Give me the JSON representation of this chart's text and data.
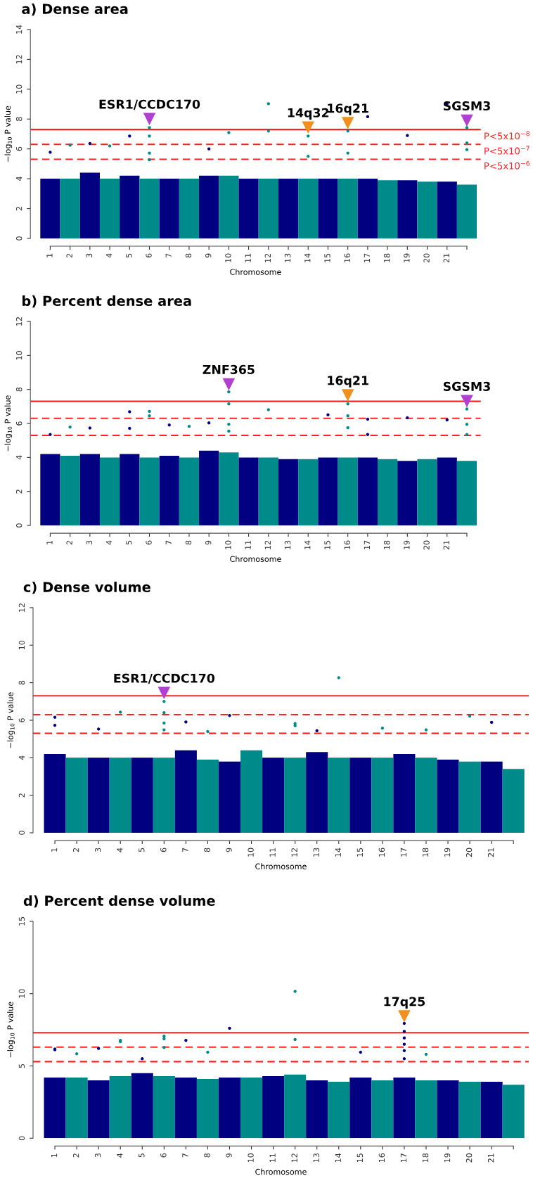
{
  "chart_data": [
    {
      "type": "bar",
      "title": "a) Dense area",
      "xlabel": "Chromosome",
      "ylabel": "−log$_{10}$ P value",
      "categories": [
        "1",
        "2",
        "3",
        "4",
        "5",
        "6",
        "7",
        "8",
        "9",
        "10",
        "11",
        "12",
        "13",
        "14",
        "15",
        "16",
        "17",
        "18",
        "19",
        "20",
        "21",
        null
      ],
      "ylim": [
        0,
        14
      ],
      "yticks": [
        0,
        2,
        4,
        6,
        8,
        10,
        12,
        14
      ],
      "series": [
        {
          "values": [
            4.0,
            4.0,
            4.4,
            4.0,
            4.2,
            4.0,
            4.0,
            4.0,
            4.2,
            4.2,
            4.0,
            4.0,
            4.0,
            4.0,
            4.0,
            4.0,
            4.0,
            3.9,
            3.9,
            3.8,
            3.8,
            3.6
          ],
          "colors": [
            "#000080",
            "#008b8b",
            "#000080",
            "#008b8b",
            "#000080",
            "#008b8b",
            "#000080",
            "#008b8b",
            "#000080",
            "#008b8b",
            "#000080",
            "#008b8b",
            "#000080",
            "#008b8b",
            "#000080",
            "#008b8b",
            "#000080",
            "#008b8b",
            "#000080",
            "#008b8b",
            "#000080",
            "#008b8b"
          ]
        },
        {
          "type": "scatter",
          "values": [
            5.77,
            6.25,
            6.36,
            6.2,
            6.86,
            7.43,
            null,
            null,
            6.0,
            7.09,
            null,
            9.03,
            null,
            6.86,
            null,
            7.2,
            8.16,
            null,
            6.9,
            null,
            9.03,
            7.43
          ],
          "colors": [
            "#000080",
            "#008b8b",
            "#000080",
            "#008b8b",
            "#000080",
            "#008b8b",
            "#000080",
            "#008b8b",
            "#000080",
            "#008b8b",
            "#000080",
            "#008b8b",
            "#000080",
            "#008b8b",
            "#000080",
            "#008b8b",
            "#000080",
            "#008b8b",
            "#000080",
            "#008b8b",
            "#000080",
            "#008b8b"
          ]
        },
        {
          "type": "scatter",
          "values": [
            null,
            null,
            null,
            null,
            null,
            6.86,
            null,
            null,
            null,
            null,
            null,
            7.2,
            null,
            5.5,
            null,
            5.72,
            null,
            null,
            null,
            null,
            null,
            6.4
          ],
          "colors": [
            "#000080",
            "#008b8b",
            "#000080",
            "#008b8b",
            "#000080",
            "#008b8b",
            "#000080",
            "#008b8b",
            "#000080",
            "#008b8b",
            "#000080",
            "#008b8b",
            "#000080",
            "#008b8b",
            "#000080",
            "#008b8b",
            "#000080",
            "#008b8b",
            "#000080",
            "#008b8b",
            "#000080",
            "#008b8b"
          ]
        },
        {
          "type": "scatter",
          "values": [
            null,
            null,
            null,
            null,
            null,
            5.72,
            null,
            null,
            null,
            null,
            null,
            null,
            null,
            null,
            null,
            null,
            null,
            null,
            null,
            null,
            null,
            5.95
          ],
          "colors": [
            "#000080",
            "#008b8b",
            "#000080",
            "#008b8b",
            "#000080",
            "#008b8b",
            "#000080",
            "#008b8b",
            "#000080",
            "#008b8b",
            "#000080",
            "#008b8b",
            "#000080",
            "#008b8b",
            "#000080",
            "#008b8b",
            "#000080",
            "#008b8b",
            "#000080",
            "#008b8b",
            "#000080",
            "#008b8b"
          ]
        },
        {
          "type": "scatter",
          "values": [
            null,
            null,
            null,
            null,
            null,
            5.27,
            null,
            null,
            null,
            null,
            null,
            null,
            null,
            null,
            null,
            null,
            null,
            null,
            null,
            null,
            null,
            null
          ],
          "color": "#008b8b"
        },
        {
          "type": "scatter",
          "marker": "triangle",
          "values": [
            null,
            null,
            null,
            null,
            null,
            8.0,
            null,
            null,
            null,
            null,
            null,
            null,
            null,
            7.43,
            null,
            7.73,
            null,
            null,
            null,
            null,
            null,
            7.89
          ],
          "colors": [
            "#b040d0",
            "#b040d0",
            "#b040d0",
            "#b040d0",
            "#b040d0",
            "#b040d0",
            "#b040d0",
            "#b040d0",
            "#b040d0",
            "#b040d0",
            "#b040d0",
            "#b040d0",
            "#b040d0",
            "#f0901e",
            "#f0901e",
            "#f0901e",
            "#b040d0",
            "#b040d0",
            "#b040d0",
            "#b040d0",
            "#b040d0",
            "#b040d0"
          ]
        }
      ],
      "ref_lines": [
        {
          "axis": "y",
          "value": 7.3,
          "color": "#ff2020",
          "line_style": "solid",
          "label": "P<5x10$^{−8}$"
        },
        {
          "axis": "y",
          "value": 6.3,
          "color": "#ff2020",
          "line_style": "dashed",
          "label": "P<5x10$^{−7}$"
        },
        {
          "axis": "y",
          "value": 5.3,
          "color": "#ff2020",
          "line_style": "dashed",
          "label": "P<5x10$^{−6}$"
        }
      ],
      "annotations": [
        {
          "text": "ESR1/CCDC170",
          "x": "6",
          "y": 8.0
        },
        {
          "text": "14q32",
          "x": "14",
          "y": 7.43
        },
        {
          "text": "16q21",
          "x": "16",
          "y": 7.73
        },
        {
          "text": "SGSM3",
          "y": 7.89
        }
      ]
    },
    {
      "type": "bar",
      "title": "b) Percent dense area",
      "xlabel": "Chromosome",
      "ylabel": "−log$_{10}$ P value",
      "categories": [
        "1",
        "2",
        "3",
        "4",
        "5",
        "6",
        "7",
        "8",
        "9",
        "10",
        "11",
        "12",
        "13",
        "14",
        "15",
        "16",
        "17",
        "18",
        "19",
        "20",
        "21",
        null
      ],
      "ylim": [
        0,
        12
      ],
      "yticks": [
        0,
        2,
        4,
        6,
        8,
        10,
        12
      ],
      "series": [
        {
          "values": [
            4.2,
            4.1,
            4.2,
            4.0,
            4.2,
            4.0,
            4.1,
            4.0,
            4.4,
            4.3,
            4.0,
            4.0,
            3.9,
            3.9,
            4.0,
            4.0,
            4.0,
            3.9,
            3.8,
            3.9,
            4.0,
            3.8
          ],
          "colors": [
            "#000080",
            "#008b8b",
            "#000080",
            "#008b8b",
            "#000080",
            "#008b8b",
            "#000080",
            "#008b8b",
            "#000080",
            "#008b8b",
            "#000080",
            "#008b8b",
            "#000080",
            "#008b8b",
            "#000080",
            "#008b8b",
            "#000080",
            "#008b8b",
            "#000080",
            "#008b8b",
            "#000080",
            "#008b8b"
          ]
        },
        {
          "type": "scatter",
          "values": [
            5.35,
            5.79,
            5.73,
            null,
            6.69,
            6.71,
            5.91,
            5.83,
            6.03,
            7.86,
            null,
            6.81,
            null,
            null,
            6.51,
            7.15,
            6.25,
            null,
            6.33,
            null,
            6.21,
            6.85
          ],
          "colors": [
            "#000080",
            "#008b8b",
            "#000080",
            "#008b8b",
            "#000080",
            "#008b8b",
            "#000080",
            "#008b8b",
            "#000080",
            "#008b8b",
            "#000080",
            "#008b8b",
            "#000080",
            "#008b8b",
            "#000080",
            "#008b8b",
            "#000080",
            "#008b8b",
            "#000080",
            "#008b8b",
            "#000080",
            "#008b8b"
          ]
        },
        {
          "type": "scatter",
          "values": [
            null,
            null,
            null,
            null,
            5.71,
            6.45,
            null,
            null,
            null,
            7.15,
            null,
            null,
            null,
            null,
            null,
            6.45,
            5.35,
            null,
            null,
            null,
            null,
            5.95
          ],
          "colors": [
            "#000080",
            "#008b8b",
            "#000080",
            "#008b8b",
            "#000080",
            "#008b8b",
            "#000080",
            "#008b8b",
            "#000080",
            "#008b8b",
            "#000080",
            "#008b8b",
            "#000080",
            "#008b8b",
            "#000080",
            "#008b8b",
            "#000080",
            "#008b8b",
            "#000080",
            "#008b8b",
            "#000080",
            "#008b8b"
          ]
        },
        {
          "type": "scatter",
          "values": [
            null,
            null,
            null,
            null,
            null,
            null,
            null,
            null,
            null,
            5.95,
            null,
            null,
            null,
            null,
            null,
            5.75,
            null,
            null,
            null,
            null,
            null,
            5.35
          ],
          "color": "#008b8b"
        },
        {
          "type": "scatter",
          "values": [
            null,
            null,
            null,
            null,
            null,
            null,
            null,
            null,
            null,
            5.55,
            null,
            null,
            null,
            null,
            null,
            null,
            null,
            null,
            null,
            null,
            null,
            null
          ],
          "color": "#008b8b"
        },
        {
          "type": "scatter",
          "marker": "triangle",
          "values": [
            null,
            null,
            null,
            null,
            null,
            null,
            null,
            null,
            null,
            8.3,
            null,
            null,
            null,
            null,
            null,
            7.66,
            null,
            null,
            null,
            null,
            null,
            7.31
          ],
          "colors": [
            "#b040d0",
            "#b040d0",
            "#b040d0",
            "#b040d0",
            "#b040d0",
            "#b040d0",
            "#b040d0",
            "#b040d0",
            "#b040d0",
            "#b040d0",
            "#b040d0",
            "#b040d0",
            "#b040d0",
            "#b040d0",
            "#b040d0",
            "#f0901e",
            "#b040d0",
            "#b040d0",
            "#b040d0",
            "#b040d0",
            "#b040d0",
            "#b040d0"
          ]
        }
      ],
      "ref_lines": [
        {
          "axis": "y",
          "value": 7.3,
          "color": "#ff2020",
          "line_style": "solid"
        },
        {
          "axis": "y",
          "value": 6.3,
          "color": "#ff2020",
          "line_style": "dashed"
        },
        {
          "axis": "y",
          "value": 5.3,
          "color": "#ff2020",
          "line_style": "dashed"
        }
      ],
      "annotations": [
        {
          "text": "ZNF365",
          "x": "10",
          "y": 8.3
        },
        {
          "text": "16q21",
          "x": "16",
          "y": 7.66
        },
        {
          "text": "SGSM3",
          "y": 7.31
        }
      ]
    },
    {
      "type": "bar",
      "title": "c) Dense volume",
      "xlabel": "Chromosome",
      "ylabel": "−log$_{10}$ P value",
      "categories": [
        "1",
        "2",
        "3",
        "4",
        "5",
        "6",
        "7",
        "8",
        "9",
        "10",
        "11",
        "12",
        "13",
        "14",
        "15",
        "16",
        "17",
        "18",
        "19",
        "20",
        "21",
        null
      ],
      "ylim": [
        0,
        12
      ],
      "yticks": [
        0,
        2,
        4,
        6,
        8,
        10,
        12
      ],
      "series": [
        {
          "values": [
            4.2,
            4.0,
            4.0,
            4.0,
            4.0,
            4.0,
            4.4,
            3.9,
            3.8,
            4.4,
            4.0,
            4.0,
            4.3,
            4.0,
            4.0,
            4.0,
            4.2,
            4.0,
            3.9,
            3.8,
            3.8,
            3.4
          ],
          "colors": [
            "#000080",
            "#008b8b",
            "#000080",
            "#008b8b",
            "#000080",
            "#008b8b",
            "#000080",
            "#008b8b",
            "#000080",
            "#008b8b",
            "#000080",
            "#008b8b",
            "#000080",
            "#008b8b",
            "#000080",
            "#008b8b",
            "#000080",
            "#008b8b",
            "#000080",
            "#008b8b",
            "#000080",
            "#008b8b"
          ]
        },
        {
          "type": "scatter",
          "values": [
            6.16,
            null,
            5.53,
            6.43,
            null,
            7.0,
            5.91,
            5.4,
            6.25,
            null,
            null,
            5.82,
            5.44,
            8.27,
            null,
            5.58,
            null,
            5.49,
            null,
            6.22,
            5.89,
            null
          ],
          "colors": [
            "#000080",
            "#008b8b",
            "#000080",
            "#008b8b",
            "#000080",
            "#008b8b",
            "#000080",
            "#008b8b",
            "#000080",
            "#008b8b",
            "#000080",
            "#008b8b",
            "#000080",
            "#008b8b",
            "#000080",
            "#008b8b",
            "#000080",
            "#008b8b",
            "#000080",
            "#008b8b",
            "#000080",
            "#008b8b"
          ]
        },
        {
          "type": "scatter",
          "values": [
            5.73,
            null,
            null,
            null,
            null,
            6.4,
            null,
            null,
            null,
            null,
            null,
            5.71,
            null,
            null,
            null,
            null,
            null,
            null,
            null,
            null,
            null,
            null
          ],
          "colors": [
            "#000080",
            "#008b8b",
            "#000080",
            "#008b8b",
            "#000080",
            "#008b8b",
            "#000080",
            "#008b8b",
            "#000080",
            "#008b8b",
            "#000080",
            "#008b8b",
            "#000080",
            "#008b8b",
            "#000080",
            "#008b8b",
            "#000080",
            "#008b8b",
            "#000080",
            "#008b8b",
            "#000080",
            "#008b8b"
          ]
        },
        {
          "type": "scatter",
          "values": [
            null,
            null,
            null,
            null,
            null,
            5.85,
            null,
            null,
            null,
            null,
            null,
            null,
            null,
            null,
            null,
            null,
            null,
            null,
            null,
            null,
            null,
            null
          ],
          "color": "#008b8b"
        },
        {
          "type": "scatter",
          "values": [
            null,
            null,
            null,
            null,
            null,
            5.49,
            null,
            null,
            null,
            null,
            null,
            null,
            null,
            null,
            null,
            null,
            null,
            null,
            null,
            null,
            null,
            null
          ],
          "color": "#008b8b"
        },
        {
          "type": "scatter",
          "marker": "triangle",
          "values": [
            null,
            null,
            null,
            null,
            null,
            7.45,
            null,
            null,
            null,
            null,
            null,
            null,
            null,
            null,
            null,
            null,
            null,
            null,
            null,
            null,
            null,
            null
          ],
          "color": "#b040d0"
        }
      ],
      "ref_lines": [
        {
          "axis": "y",
          "value": 7.3,
          "color": "#ff2020",
          "line_style": "solid"
        },
        {
          "axis": "y",
          "value": 6.3,
          "color": "#ff2020",
          "line_style": "dashed"
        },
        {
          "axis": "y",
          "value": 5.3,
          "color": "#ff2020",
          "line_style": "dashed"
        }
      ],
      "annotations": [
        {
          "text": "ESR1/CCDC170",
          "x": "6",
          "y": 7.45
        }
      ]
    },
    {
      "type": "bar",
      "title": "d) Percent dense volume",
      "xlabel": "Chromosome",
      "ylabel": "−log$_{10}$ P value",
      "categories": [
        "1",
        "2",
        "3",
        "4",
        "5",
        "6",
        "7",
        "8",
        "9",
        "10",
        "11",
        "12",
        "13",
        "14",
        "15",
        "16",
        "17",
        "18",
        "19",
        "20",
        "21",
        null
      ],
      "ylim": [
        0,
        15
      ],
      "yticks": [
        0,
        5,
        10,
        15
      ],
      "series": [
        {
          "values": [
            4.2,
            4.2,
            4.0,
            4.3,
            4.5,
            4.3,
            4.2,
            4.1,
            4.2,
            4.2,
            4.3,
            4.4,
            4.0,
            3.9,
            4.2,
            4.0,
            4.2,
            4.0,
            4.0,
            3.9,
            3.9,
            3.7
          ],
          "colors": [
            "#000080",
            "#008b8b",
            "#000080",
            "#008b8b",
            "#000080",
            "#008b8b",
            "#000080",
            "#008b8b",
            "#000080",
            "#008b8b",
            "#000080",
            "#008b8b",
            "#000080",
            "#008b8b",
            "#000080",
            "#008b8b",
            "#000080",
            "#008b8b",
            "#000080",
            "#008b8b",
            "#000080",
            "#008b8b"
          ]
        },
        {
          "type": "scatter",
          "values": [
            6.17,
            5.84,
            6.21,
            6.68,
            5.5,
            7.06,
            6.77,
            5.95,
            7.61,
            null,
            null,
            10.16,
            null,
            null,
            5.95,
            null,
            7.94,
            5.8,
            null,
            null,
            null,
            null
          ],
          "colors": [
            "#000080",
            "#008b8b",
            "#000080",
            "#008b8b",
            "#000080",
            "#008b8b",
            "#000080",
            "#008b8b",
            "#000080",
            "#008b8b",
            "#000080",
            "#008b8b",
            "#000080",
            "#008b8b",
            "#000080",
            "#008b8b",
            "#000080",
            "#008b8b",
            "#000080",
            "#008b8b",
            "#000080",
            "#008b8b"
          ]
        },
        {
          "type": "scatter",
          "values": [
            6.12,
            null,
            null,
            6.77,
            null,
            6.28,
            null,
            null,
            null,
            null,
            null,
            6.83,
            null,
            null,
            null,
            null,
            7.39,
            null,
            null,
            null,
            null,
            null
          ],
          "colors": [
            "#000080",
            "#008b8b",
            "#000080",
            "#008b8b",
            "#000080",
            "#008b8b",
            "#000080",
            "#008b8b",
            "#000080",
            "#008b8b",
            "#000080",
            "#008b8b",
            "#000080",
            "#008b8b",
            "#000080",
            "#008b8b",
            "#000080",
            "#008b8b",
            "#000080",
            "#008b8b",
            "#000080",
            "#008b8b"
          ]
        },
        {
          "type": "scatter",
          "values": [
            null,
            null,
            null,
            null,
            null,
            6.88,
            null,
            null,
            null,
            null,
            null,
            null,
            null,
            null,
            null,
            null,
            6.94,
            null,
            null,
            null,
            null,
            null
          ],
          "colors": [
            "#000080",
            "#008b8b",
            "#000080",
            "#008b8b",
            "#000080",
            "#008b8b",
            "#000080",
            "#008b8b",
            "#000080",
            "#008b8b",
            "#000080",
            "#008b8b",
            "#000080",
            "#008b8b",
            "#000080",
            "#008b8b",
            "#000080",
            "#008b8b",
            "#000080",
            "#008b8b",
            "#000080",
            "#008b8b"
          ]
        },
        {
          "type": "scatter",
          "values": [
            null,
            null,
            null,
            null,
            null,
            null,
            null,
            null,
            null,
            null,
            null,
            null,
            null,
            null,
            null,
            null,
            6.5,
            null,
            null,
            null,
            null,
            null
          ],
          "color": "#000080"
        },
        {
          "type": "scatter",
          "values": [
            null,
            null,
            null,
            null,
            null,
            null,
            null,
            null,
            null,
            null,
            null,
            null,
            null,
            null,
            null,
            null,
            6.06,
            null,
            null,
            null,
            null,
            null
          ],
          "color": "#000080"
        },
        {
          "type": "scatter",
          "values": [
            null,
            null,
            null,
            null,
            null,
            null,
            null,
            null,
            null,
            null,
            null,
            null,
            null,
            null,
            null,
            null,
            5.5,
            null,
            null,
            null,
            null,
            null
          ],
          "color": "#000080"
        },
        {
          "type": "scatter",
          "marker": "triangle",
          "values": [
            null,
            null,
            null,
            null,
            null,
            null,
            null,
            null,
            null,
            null,
            null,
            null,
            null,
            null,
            null,
            null,
            8.43,
            null,
            null,
            null,
            null,
            null
          ],
          "color": "#f0901e"
        }
      ],
      "ref_lines": [
        {
          "axis": "y",
          "value": 7.3,
          "color": "#ff2020",
          "line_style": "solid"
        },
        {
          "axis": "y",
          "value": 6.3,
          "color": "#ff2020",
          "line_style": "dashed"
        },
        {
          "axis": "y",
          "value": 5.3,
          "color": "#ff2020",
          "line_style": "dashed"
        }
      ],
      "annotations": [
        {
          "text": "17q25",
          "x": "17",
          "y": 8.43
        }
      ]
    }
  ]
}
